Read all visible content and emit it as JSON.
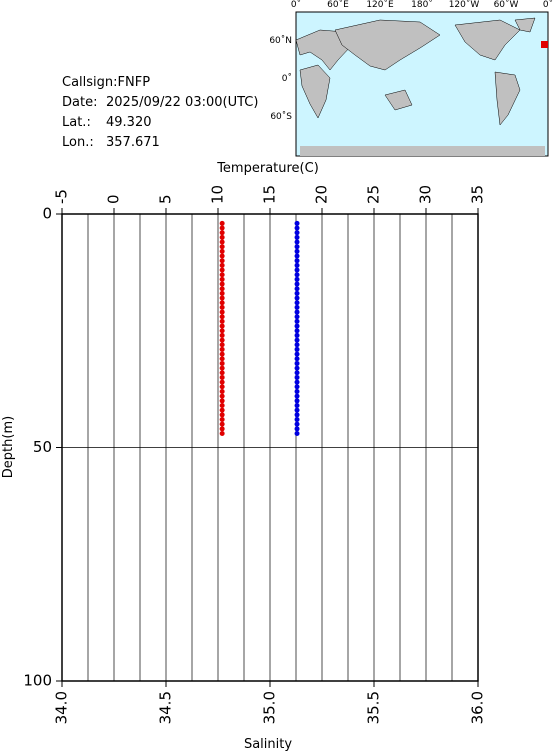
{
  "info": {
    "callsign": "Callsign:FNFP",
    "date_label": "Date:",
    "date": "2025/09/22 03:00(UTC)",
    "lat_label": "Lat.:",
    "lat": "49.320",
    "lon_label": "Lon.:",
    "lon": "357.671"
  },
  "map": {
    "lon_labels": [
      "0˚",
      "60˚E",
      "120˚E",
      "180˚",
      "120˚W",
      "60˚W",
      "0˚"
    ],
    "lat_labels": [
      "60˚N",
      "0˚",
      "60˚S"
    ]
  },
  "chart_data": {
    "type": "profile",
    "x_label": "Temperature(C)",
    "x2_label": "Salinity",
    "y_label": "Depth(m)",
    "xlim": [
      -5,
      35
    ],
    "xticks": [
      -5,
      0,
      5,
      10,
      15,
      20,
      25,
      30,
      35
    ],
    "x2lim": [
      34,
      36
    ],
    "x2ticks": [
      {
        "value": 34,
        "label": "34.0"
      },
      {
        "value": 34.5,
        "label": "34.5"
      },
      {
        "value": 35,
        "label": "35.0"
      },
      {
        "value": 35.5,
        "label": "35.5"
      },
      {
        "value": 36,
        "label": "36.0"
      }
    ],
    "ylim": [
      0,
      100
    ],
    "yticks": [
      0,
      50,
      100
    ],
    "xgrid": [
      -2.5,
      0,
      2.5,
      5,
      7.5,
      10,
      12.5,
      15,
      17.5,
      20,
      22.5,
      25,
      27.5,
      30,
      32.5
    ],
    "ygrid": [
      50
    ],
    "depth": [
      2,
      3,
      4,
      5,
      6,
      7,
      8,
      9,
      10,
      11,
      12,
      13,
      14,
      15,
      16,
      17,
      18,
      19,
      20,
      21,
      22,
      23,
      24,
      25,
      26,
      27,
      28,
      29,
      30,
      31,
      32,
      33,
      34,
      35,
      36,
      37,
      38,
      39,
      40,
      41,
      42,
      43,
      44,
      45,
      46,
      47
    ],
    "series": [
      {
        "color": "#e00000",
        "axis": "x",
        "values": [
          10.4,
          10.4,
          10.4,
          10.4,
          10.4,
          10.4,
          10.4,
          10.4,
          10.4,
          10.4,
          10.4,
          10.4,
          10.4,
          10.4,
          10.4,
          10.4,
          10.4,
          10.4,
          10.4,
          10.4,
          10.4,
          10.4,
          10.4,
          10.4,
          10.4,
          10.4,
          10.4,
          10.4,
          10.4,
          10.4,
          10.4,
          10.4,
          10.4,
          10.4,
          10.4,
          10.4,
          10.4,
          10.4,
          10.4,
          10.4,
          10.4,
          10.4,
          10.4,
          10.4,
          10.4,
          10.4
        ]
      },
      {
        "color": "#0000e0",
        "axis": "x2",
        "values": [
          35.13,
          35.13,
          35.13,
          35.13,
          35.13,
          35.13,
          35.13,
          35.13,
          35.13,
          35.13,
          35.13,
          35.13,
          35.13,
          35.13,
          35.13,
          35.13,
          35.13,
          35.13,
          35.13,
          35.13,
          35.13,
          35.13,
          35.13,
          35.13,
          35.13,
          35.13,
          35.13,
          35.13,
          35.13,
          35.13,
          35.13,
          35.13,
          35.13,
          35.13,
          35.13,
          35.13,
          35.13,
          35.13,
          35.13,
          35.13,
          35.13,
          35.13,
          35.13,
          35.13,
          35.13,
          35.13
        ]
      }
    ]
  }
}
